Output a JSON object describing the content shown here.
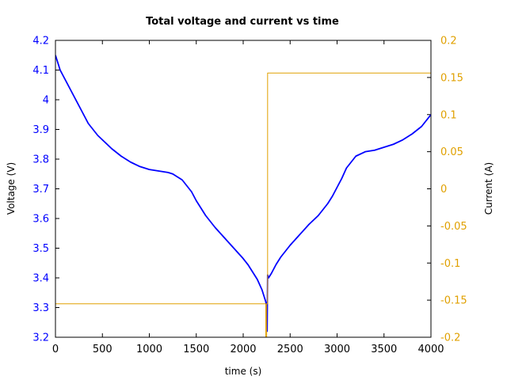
{
  "chart_data": {
    "type": "line",
    "title": "Total voltage and current vs time",
    "xlabel": "time (s)",
    "ylabel_left": "Voltage (V)",
    "ylabel_right": "Current (A)",
    "xlim": [
      0,
      4000
    ],
    "ylim_left": [
      3.2,
      4.2
    ],
    "ylim_right": [
      -0.2,
      0.2
    ],
    "x_ticks": [
      0,
      500,
      1000,
      1500,
      2000,
      2500,
      3000,
      3500,
      4000
    ],
    "x_tick_labels": [
      "0",
      "500",
      "1000",
      "1500",
      "2000",
      "2500",
      "3000",
      "3500",
      "4000"
    ],
    "y_left_ticks": [
      3.2,
      3.3,
      3.4,
      3.5,
      3.6,
      3.7,
      3.8,
      3.9,
      4.0,
      4.1,
      4.2
    ],
    "y_left_tick_labels": [
      "3.2",
      "3.3",
      "3.4",
      "3.5",
      "3.6",
      "3.7",
      "3.8",
      "3.9",
      "4",
      "4.1",
      "4.2"
    ],
    "y_right_ticks": [
      -0.2,
      -0.15,
      -0.1,
      -0.05,
      0,
      0.05,
      0.1,
      0.15,
      0.2
    ],
    "y_right_tick_labels": [
      "-0.2",
      "-0.15",
      "-0.1",
      "-0.05",
      "0",
      "0.05",
      "0.1",
      "0.15",
      "0.2"
    ],
    "grid": false,
    "colors": {
      "left_axis": "#0000ff",
      "right_axis": "#e0a000",
      "voltage": "#0000ff",
      "current": "#e0a000"
    },
    "series": [
      {
        "axis": "left",
        "x": [
          0,
          20,
          50,
          100,
          150,
          200,
          250,
          300,
          350,
          400,
          450,
          500,
          600,
          700,
          800,
          900,
          1000,
          1100,
          1200,
          1250,
          1300,
          1350,
          1400,
          1450,
          1500,
          1550,
          1600,
          1700,
          1800,
          1900,
          2000,
          2050,
          2100,
          2150,
          2200,
          2220,
          2240,
          2250,
          2255,
          2260,
          2265,
          2270,
          2280,
          2300,
          2350,
          2400,
          2500,
          2600,
          2700,
          2800,
          2850,
          2900,
          2950,
          3000,
          3050,
          3100,
          3150,
          3200,
          3300,
          3400,
          3500,
          3600,
          3700,
          3800,
          3900,
          4000
        ],
        "y": [
          4.15,
          4.13,
          4.1,
          4.07,
          4.04,
          4.01,
          3.98,
          3.95,
          3.92,
          3.9,
          3.88,
          3.865,
          3.835,
          3.81,
          3.79,
          3.775,
          3.765,
          3.76,
          3.755,
          3.75,
          3.74,
          3.73,
          3.71,
          3.69,
          3.66,
          3.635,
          3.61,
          3.57,
          3.535,
          3.5,
          3.465,
          3.445,
          3.42,
          3.395,
          3.36,
          3.34,
          3.32,
          3.3,
          3.22,
          3.41,
          3.405,
          3.4,
          3.405,
          3.415,
          3.445,
          3.47,
          3.51,
          3.545,
          3.58,
          3.61,
          3.63,
          3.65,
          3.675,
          3.705,
          3.735,
          3.77,
          3.79,
          3.81,
          3.825,
          3.83,
          3.84,
          3.85,
          3.865,
          3.885,
          3.91,
          3.95
        ]
      },
      {
        "axis": "right",
        "x": [
          0,
          2240,
          2240,
          2250,
          2250,
          2260,
          2260,
          4000
        ],
        "y": [
          -0.155,
          -0.155,
          -0.21,
          -0.21,
          -0.155,
          -0.155,
          0.156,
          0.156
        ]
      }
    ]
  }
}
